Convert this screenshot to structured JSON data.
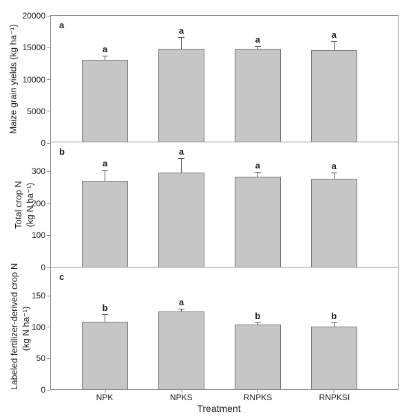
{
  "figure_title": "",
  "colors": {
    "bar_fill": "#c6c6c6",
    "bar_border": "#787878",
    "axis": "#8c8c8c",
    "error_bar": "#4d4d4d",
    "text": "#1a1a1a"
  },
  "chart_data": [
    {
      "type": "bar",
      "panel_label": "a",
      "ylabel_lines": [
        "Maize grain yields (kg ha⁻¹)"
      ],
      "categories": [
        "NPK",
        "NPKS",
        "RNPKS",
        "RNPKSI"
      ],
      "values": [
        13000,
        14800,
        14800,
        14500
      ],
      "errors": [
        700,
        1800,
        350,
        1500
      ],
      "sig_letters": [
        "a",
        "a",
        "a",
        "a"
      ],
      "ylim": [
        0,
        20000
      ],
      "yticks": [
        0,
        5000,
        10000,
        15000,
        20000
      ],
      "grid": false
    },
    {
      "type": "bar",
      "panel_label": "b",
      "ylabel_lines": [
        "Total crop N",
        "(kg N ha⁻¹)"
      ],
      "categories": [
        "NPK",
        "NPKS",
        "RNPKS",
        "RNPKSI"
      ],
      "values": [
        270,
        295,
        283,
        275
      ],
      "errors": [
        33,
        45,
        14,
        21
      ],
      "sig_letters": [
        "a",
        "a",
        "a",
        "a"
      ],
      "ylim": [
        0,
        390
      ],
      "yticks": [
        0,
        100,
        200,
        300
      ],
      "grid": false
    },
    {
      "type": "bar",
      "panel_label": "c",
      "ylabel_lines": [
        "Labeled fertilizer-derived crop N",
        "(kg N ha⁻¹)"
      ],
      "categories": [
        "NPK",
        "NPKS",
        "RNPKS",
        "RNPKSI"
      ],
      "values": [
        108,
        125,
        104,
        100
      ],
      "errors": [
        12,
        4,
        3,
        7
      ],
      "sig_letters": [
        "b",
        "a",
        "b",
        "b"
      ],
      "ylim": [
        0,
        195
      ],
      "yticks": [
        0,
        50,
        100,
        150
      ],
      "xlabel": "Treatment",
      "grid": false
    }
  ]
}
